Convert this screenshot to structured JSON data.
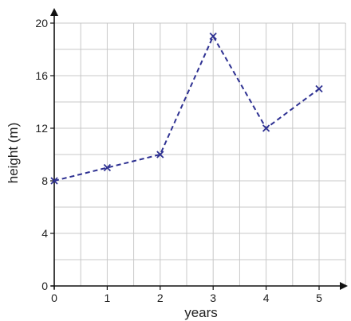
{
  "chart_data": {
    "type": "line",
    "title": "",
    "xlabel": "years",
    "ylabel": "height (m)",
    "x": [
      0,
      1,
      2,
      3,
      4,
      5
    ],
    "series": [
      {
        "values": [
          8,
          9,
          10,
          19,
          12,
          15
        ]
      }
    ],
    "xlim": [
      0,
      5.5
    ],
    "ylim": [
      0,
      20
    ],
    "x_ticks": [
      "0",
      "1",
      "2",
      "3",
      "4",
      "5"
    ],
    "y_ticks": [
      "0",
      "4",
      "8",
      "12",
      "16",
      "20"
    ],
    "x_tick_values": [
      0,
      1,
      2,
      3,
      4,
      5
    ],
    "y_tick_values": [
      0,
      4,
      8,
      12,
      16,
      20
    ],
    "grid": true,
    "grid_step_x": 0.5,
    "grid_step_y": 2,
    "line_style": "dashed",
    "marker": "x",
    "colors": {
      "line": "#2e3192",
      "grid": "#c8c8c8",
      "axis": "#111111"
    }
  }
}
